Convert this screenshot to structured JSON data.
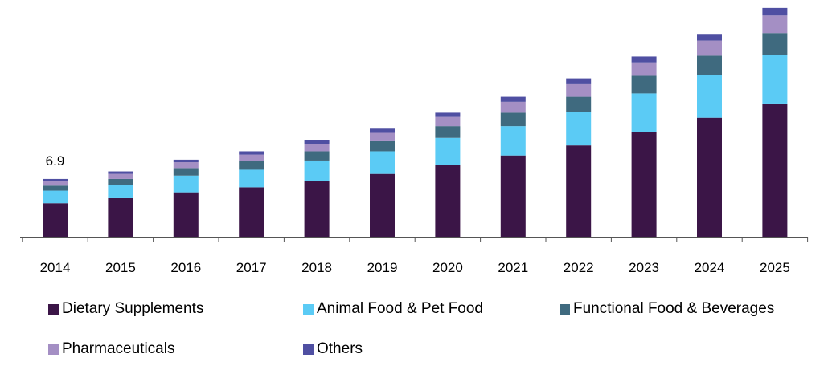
{
  "chart_data": {
    "type": "bar",
    "stacked": true,
    "categories": [
      "2014",
      "2015",
      "2016",
      "2017",
      "2018",
      "2019",
      "2020",
      "2021",
      "2022",
      "2023",
      "2024",
      "2025"
    ],
    "series": [
      {
        "name": "Dietary Supplements",
        "color": "#3b1547",
        "values": [
          4.0,
          4.6,
          5.3,
          5.9,
          6.7,
          7.5,
          8.6,
          9.7,
          10.9,
          12.5,
          14.2,
          15.9
        ]
      },
      {
        "name": "Animal Food & Pet Food",
        "color": "#5bcbf5",
        "values": [
          1.5,
          1.6,
          2.0,
          2.1,
          2.4,
          2.7,
          3.2,
          3.5,
          4.0,
          4.6,
          5.1,
          5.8
        ]
      },
      {
        "name": "Functional Food & Beverages",
        "color": "#3f6a7f",
        "values": [
          0.6,
          0.7,
          0.9,
          1.0,
          1.1,
          1.2,
          1.4,
          1.6,
          1.8,
          2.1,
          2.3,
          2.6
        ]
      },
      {
        "name": "Pharmaceuticals",
        "color": "#a48fc4",
        "values": [
          0.5,
          0.6,
          0.7,
          0.8,
          0.9,
          1.0,
          1.1,
          1.3,
          1.5,
          1.6,
          1.8,
          2.1
        ]
      },
      {
        "name": "Others",
        "color": "#4f4fa2",
        "values": [
          0.3,
          0.3,
          0.3,
          0.4,
          0.4,
          0.5,
          0.5,
          0.6,
          0.7,
          0.7,
          0.8,
          0.9
        ]
      }
    ],
    "data_labels": [
      {
        "category": "2014",
        "text": "6.9"
      }
    ],
    "ylim": [
      0,
      27
    ],
    "grid": false,
    "legend_position": "bottom",
    "title": "",
    "xlabel": "",
    "ylabel": ""
  }
}
